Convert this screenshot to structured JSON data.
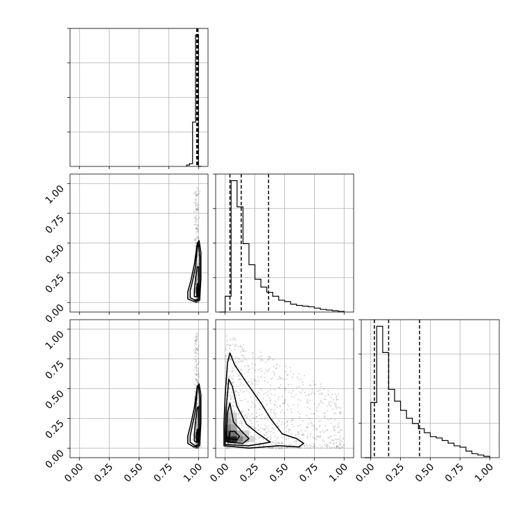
{
  "chart_data": {
    "type": "corner",
    "params": [
      {
        "name": "",
        "lim": [
          -0.08,
          1.08
        ]
      },
      {
        "name": "",
        "lim": [
          -0.08,
          1.08
        ]
      },
      {
        "name": "",
        "lim": [
          -0.08,
          1.08
        ]
      }
    ],
    "tick_values": [
      0.0,
      0.25,
      0.5,
      0.75,
      1.0
    ],
    "tick_labels": [
      "0.00",
      "0.25",
      "0.50",
      "0.75",
      "1.00"
    ],
    "grid": true,
    "histograms": [
      {
        "param_index": 0,
        "bin_edges": [
          0.9,
          0.925,
          0.95,
          0.975,
          1.0,
          1.025
        ],
        "counts": [
          0.01,
          0.02,
          0.32,
          0.95,
          0.0
        ],
        "quantile_lines": [
          0.985,
          0.99,
          0.995
        ]
      },
      {
        "param_index": 1,
        "bin_edges": [
          -0.05,
          0.0,
          0.05,
          0.1,
          0.15,
          0.2,
          0.25,
          0.3,
          0.35,
          0.4,
          0.45,
          0.5,
          0.55,
          0.6,
          0.65,
          0.7,
          0.75,
          0.8,
          0.85,
          0.9,
          0.95,
          1.0
        ],
        "counts": [
          0.0,
          0.12,
          1.0,
          0.8,
          0.52,
          0.36,
          0.25,
          0.19,
          0.15,
          0.12,
          0.09,
          0.08,
          0.06,
          0.05,
          0.045,
          0.04,
          0.03,
          0.02,
          0.015,
          0.01,
          0.005
        ],
        "quantile_lines": [
          0.04,
          0.135,
          0.365
        ]
      },
      {
        "param_index": 2,
        "bin_edges": [
          -0.05,
          0.0,
          0.05,
          0.1,
          0.15,
          0.2,
          0.25,
          0.3,
          0.35,
          0.4,
          0.45,
          0.5,
          0.55,
          0.6,
          0.65,
          0.7,
          0.75,
          0.8,
          0.85,
          0.9,
          0.95,
          1.0
        ],
        "counts": [
          0.0,
          0.42,
          1.0,
          0.8,
          0.52,
          0.43,
          0.36,
          0.3,
          0.26,
          0.22,
          0.19,
          0.16,
          0.15,
          0.13,
          0.11,
          0.09,
          0.08,
          0.05,
          0.03,
          0.02,
          0.01
        ],
        "quantile_lines": [
          0.03,
          0.15,
          0.41
        ]
      }
    ],
    "joint_panels": [
      {
        "x_param": 0,
        "y_param": 1,
        "cells": [
          [
            0.99,
            0.07,
            1.0
          ],
          [
            0.99,
            0.12,
            0.75
          ],
          [
            0.985,
            0.18,
            0.45
          ],
          [
            0.99,
            0.25,
            0.28
          ],
          [
            0.975,
            0.1,
            0.4
          ],
          [
            0.995,
            0.1,
            0.5
          ],
          [
            0.98,
            0.3,
            0.15
          ],
          [
            0.99,
            0.35,
            0.12
          ]
        ],
        "contours": [
          [
            [
              0.99,
              0.06
            ],
            [
              0.995,
              0.1
            ],
            [
              0.99,
              0.16
            ],
            [
              0.985,
              0.12
            ],
            [
              0.985,
              0.06
            ]
          ],
          [
            [
              0.965,
              0.05
            ],
            [
              0.995,
              0.05
            ],
            [
              1.0,
              0.1
            ],
            [
              1.0,
              0.3
            ],
            [
              0.99,
              0.3
            ],
            [
              0.975,
              0.2
            ],
            [
              0.965,
              0.1
            ]
          ],
          [
            [
              0.93,
              0.04
            ],
            [
              0.97,
              0.02
            ],
            [
              1.0,
              0.03
            ],
            [
              1.01,
              0.15
            ],
            [
              1.01,
              0.38
            ],
            [
              1.0,
              0.5
            ],
            [
              0.99,
              0.46
            ],
            [
              0.975,
              0.3
            ],
            [
              0.95,
              0.18
            ],
            [
              0.93,
              0.1
            ]
          ],
          [
            [
              0.91,
              0.03
            ],
            [
              0.96,
              0.01
            ],
            [
              1.01,
              0.02
            ],
            [
              1.02,
              0.2
            ],
            [
              1.02,
              0.42
            ],
            [
              1.005,
              0.52
            ],
            [
              0.99,
              0.5
            ],
            [
              0.965,
              0.32
            ],
            [
              0.935,
              0.18
            ],
            [
              0.91,
              0.09
            ]
          ]
        ],
        "scatter": {
          "x_center": 0.985,
          "x_spread": 0.02,
          "y_min": 0.0,
          "y_max": 0.97,
          "count": 260
        }
      },
      {
        "x_param": 0,
        "y_param": 2,
        "cells": [
          [
            0.99,
            0.07,
            0.95
          ],
          [
            0.99,
            0.12,
            0.7
          ],
          [
            0.985,
            0.18,
            0.4
          ],
          [
            0.99,
            0.25,
            0.25
          ],
          [
            0.975,
            0.1,
            0.35
          ],
          [
            0.995,
            0.1,
            0.45
          ],
          [
            0.98,
            0.32,
            0.15
          ]
        ],
        "contours": [
          [
            [
              0.985,
              0.05
            ],
            [
              0.995,
              0.08
            ],
            [
              0.99,
              0.16
            ],
            [
              0.98,
              0.1
            ]
          ],
          [
            [
              0.965,
              0.06
            ],
            [
              0.995,
              0.05
            ],
            [
              1.0,
              0.12
            ],
            [
              1.0,
              0.35
            ],
            [
              0.99,
              0.34
            ],
            [
              0.975,
              0.22
            ],
            [
              0.965,
              0.12
            ]
          ],
          [
            [
              0.93,
              0.05
            ],
            [
              0.97,
              0.02
            ],
            [
              1.0,
              0.03
            ],
            [
              1.01,
              0.18
            ],
            [
              1.01,
              0.42
            ],
            [
              1.0,
              0.52
            ],
            [
              0.99,
              0.5
            ],
            [
              0.975,
              0.32
            ],
            [
              0.95,
              0.2
            ],
            [
              0.93,
              0.1
            ]
          ],
          [
            [
              0.91,
              0.04
            ],
            [
              0.96,
              0.01
            ],
            [
              1.01,
              0.02
            ],
            [
              1.02,
              0.22
            ],
            [
              1.02,
              0.45
            ],
            [
              1.005,
              0.54
            ],
            [
              0.99,
              0.52
            ],
            [
              0.965,
              0.34
            ],
            [
              0.935,
              0.2
            ],
            [
              0.91,
              0.1
            ]
          ]
        ],
        "scatter": {
          "x_center": 0.985,
          "x_spread": 0.02,
          "y_min": 0.0,
          "y_max": 0.97,
          "count": 260
        }
      },
      {
        "x_param": 1,
        "y_param": 2,
        "cells": [
          [
            0.025,
            0.075,
            1.0
          ],
          [
            0.075,
            0.075,
            0.95
          ],
          [
            0.125,
            0.075,
            0.55
          ],
          [
            0.175,
            0.075,
            0.35
          ],
          [
            0.025,
            0.125,
            0.75
          ],
          [
            0.075,
            0.125,
            0.6
          ],
          [
            0.125,
            0.125,
            0.35
          ],
          [
            0.025,
            0.175,
            0.55
          ],
          [
            0.075,
            0.175,
            0.4
          ],
          [
            0.025,
            0.225,
            0.4
          ],
          [
            0.075,
            0.225,
            0.28
          ],
          [
            0.025,
            0.275,
            0.3
          ],
          [
            0.075,
            0.275,
            0.2
          ],
          [
            0.025,
            0.325,
            0.2
          ],
          [
            0.175,
            0.125,
            0.2
          ],
          [
            0.225,
            0.075,
            0.18
          ]
        ],
        "contours": [
          [
            [
              0.03,
              0.08
            ],
            [
              0.1,
              0.07
            ],
            [
              0.12,
              0.1
            ],
            [
              0.08,
              0.14
            ],
            [
              0.04,
              0.14
            ]
          ],
          [
            [
              0.02,
              0.05
            ],
            [
              0.15,
              0.04
            ],
            [
              0.2,
              0.08
            ],
            [
              0.14,
              0.14
            ],
            [
              0.07,
              0.22
            ],
            [
              0.04,
              0.38
            ],
            [
              0.02,
              0.3
            ],
            [
              0.01,
              0.12
            ]
          ],
          [
            [
              0.0,
              0.03
            ],
            [
              0.2,
              0.02
            ],
            [
              0.38,
              0.05
            ],
            [
              0.28,
              0.12
            ],
            [
              0.18,
              0.2
            ],
            [
              0.1,
              0.35
            ],
            [
              0.06,
              0.52
            ],
            [
              0.03,
              0.58
            ],
            [
              0.01,
              0.35
            ],
            [
              0.0,
              0.15
            ]
          ],
          [
            [
              -0.01,
              0.02
            ],
            [
              0.2,
              0.0
            ],
            [
              0.45,
              0.02
            ],
            [
              0.62,
              0.01
            ],
            [
              0.66,
              0.04
            ],
            [
              0.6,
              0.08
            ],
            [
              0.48,
              0.12
            ],
            [
              0.38,
              0.25
            ],
            [
              0.3,
              0.38
            ],
            [
              0.18,
              0.55
            ],
            [
              0.08,
              0.7
            ],
            [
              0.04,
              0.8
            ],
            [
              0.02,
              0.72
            ],
            [
              0.0,
              0.45
            ],
            [
              -0.01,
              0.2
            ]
          ]
        ],
        "scatter": {
          "x_min": 0.0,
          "x_max": 1.0,
          "y_min": 0.0,
          "y_max": 0.97,
          "count": 900
        }
      }
    ]
  }
}
